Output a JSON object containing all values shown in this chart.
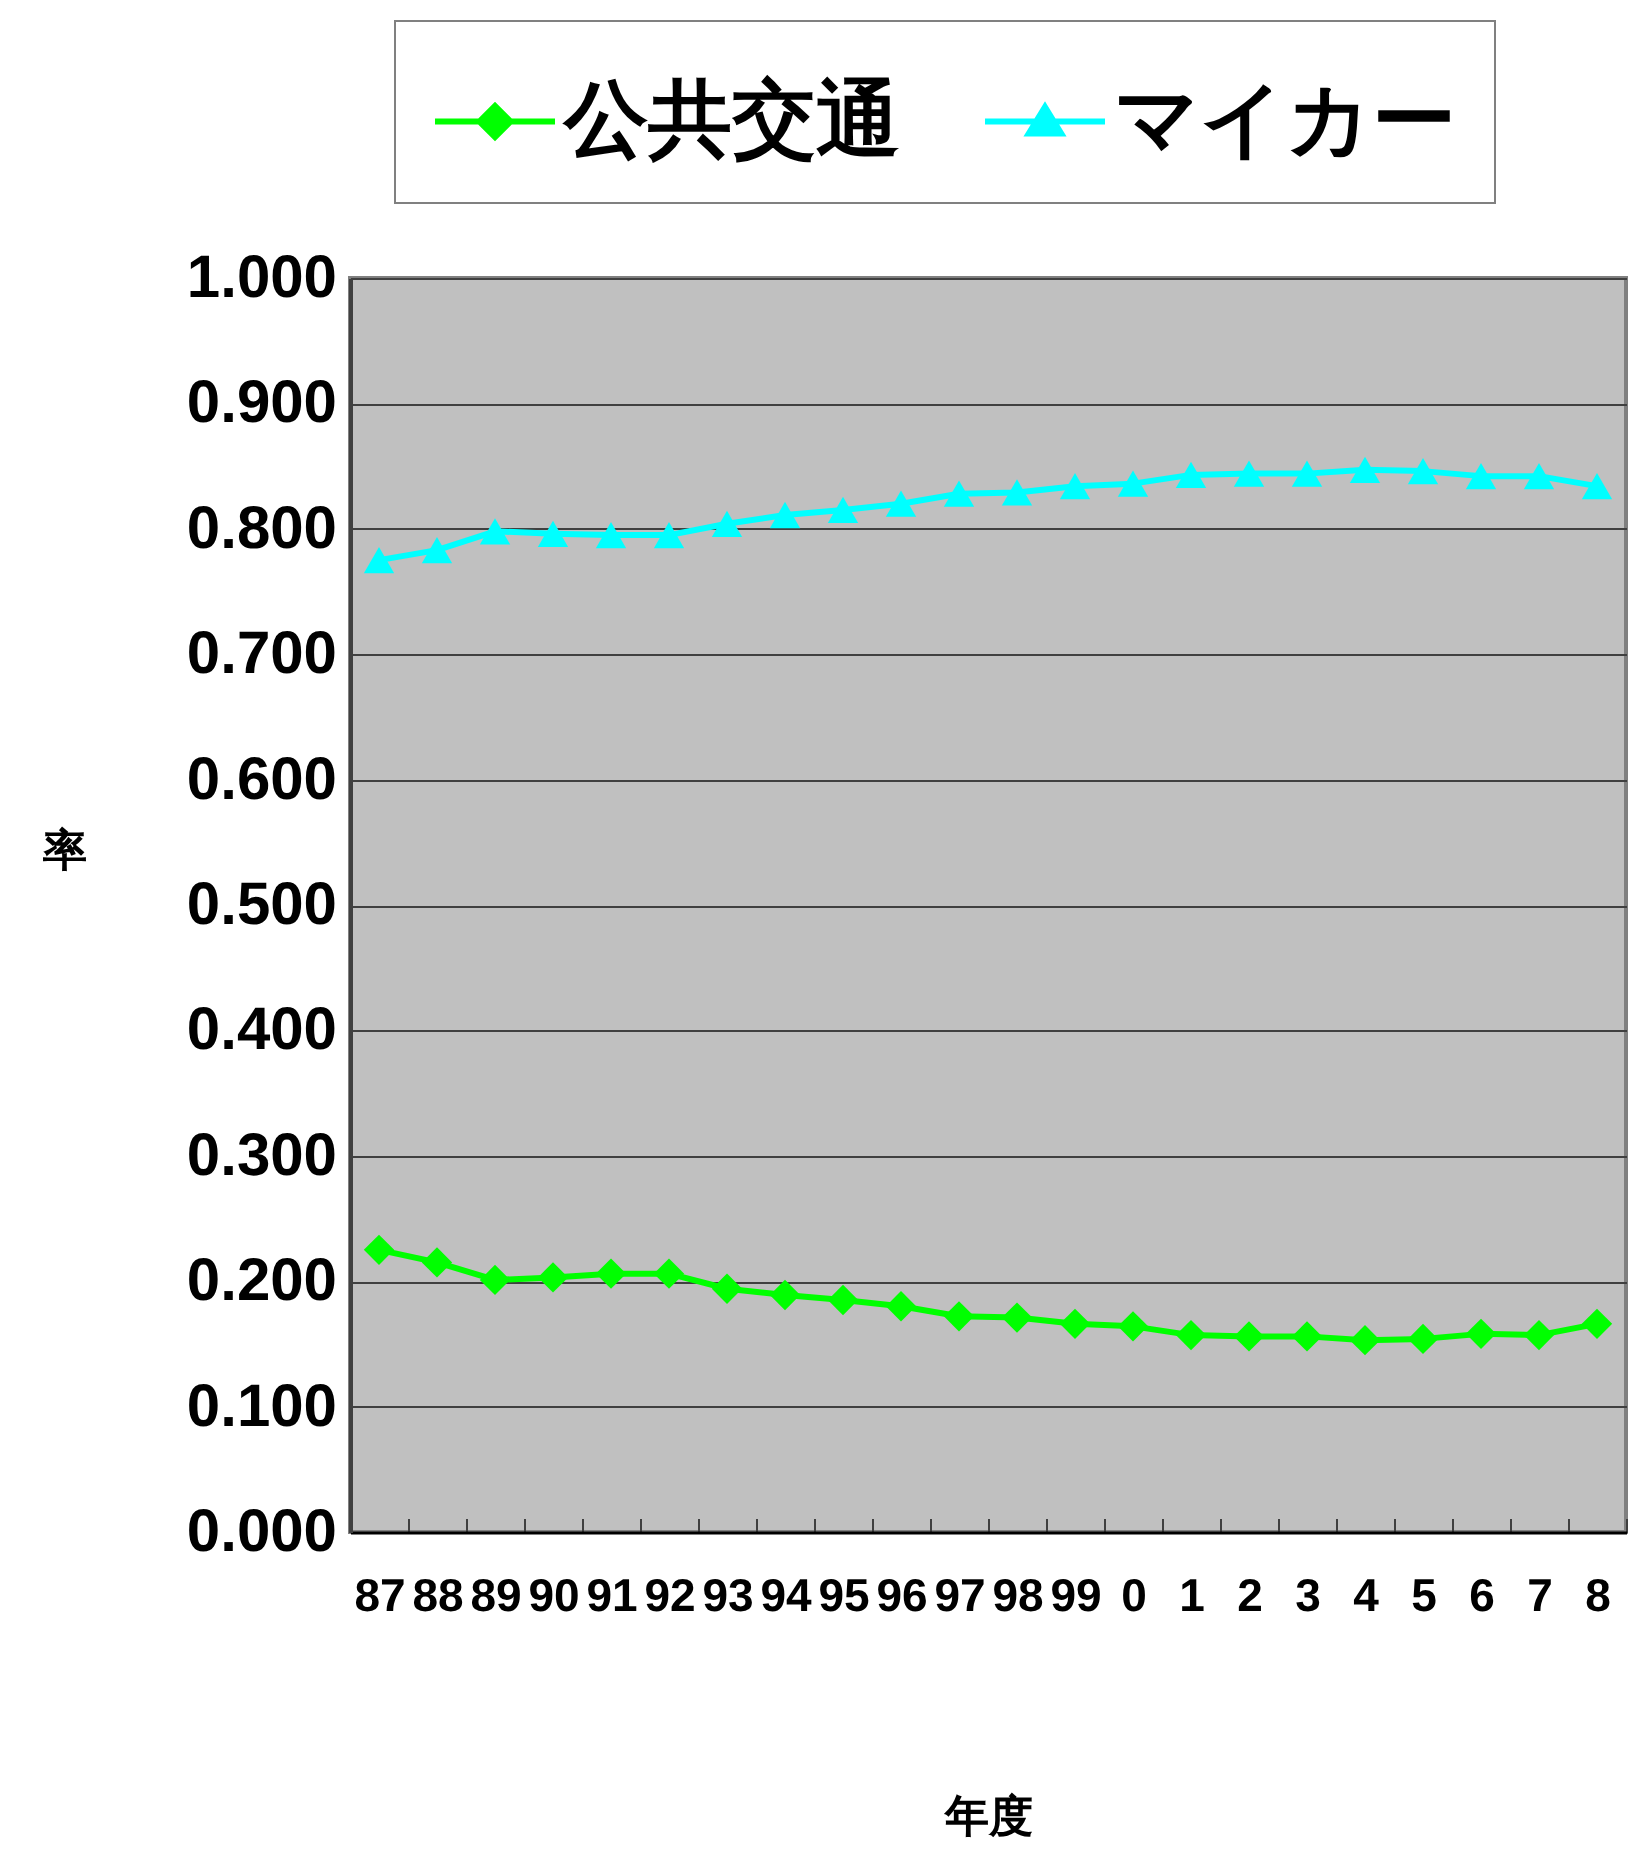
{
  "chart_data": {
    "type": "line",
    "xlabel": "年度",
    "ylabel": "率",
    "categories": [
      "87",
      "88",
      "89",
      "90",
      "91",
      "92",
      "93",
      "94",
      "95",
      "96",
      "97",
      "98",
      "99",
      "0",
      "1",
      "2",
      "3",
      "4",
      "5",
      "6",
      "7",
      "8"
    ],
    "series": [
      {
        "name": "公共交通",
        "color": "#00ff00",
        "marker": "diamond",
        "values": [
          0.225,
          0.215,
          0.201,
          0.203,
          0.206,
          0.206,
          0.194,
          0.189,
          0.185,
          0.18,
          0.172,
          0.171,
          0.166,
          0.164,
          0.157,
          0.156,
          0.156,
          0.153,
          0.154,
          0.158,
          0.157,
          0.166
        ]
      },
      {
        "name": "マイカー",
        "color": "#00ffff",
        "marker": "triangle",
        "values": [
          0.775,
          0.783,
          0.798,
          0.796,
          0.795,
          0.795,
          0.804,
          0.811,
          0.815,
          0.82,
          0.828,
          0.829,
          0.834,
          0.836,
          0.843,
          0.844,
          0.844,
          0.847,
          0.846,
          0.842,
          0.842,
          0.834
        ]
      }
    ],
    "ylim": [
      0,
      1
    ],
    "yticks": [
      {
        "value": 0,
        "label": "0.000"
      },
      {
        "value": 0.1,
        "label": "0.100"
      },
      {
        "value": 0.2,
        "label": "0.200"
      },
      {
        "value": 0.3,
        "label": "0.300"
      },
      {
        "value": 0.4,
        "label": "0.400"
      },
      {
        "value": 0.5,
        "label": "0.500"
      },
      {
        "value": 0.6,
        "label": "0.600"
      },
      {
        "value": 0.7,
        "label": "0.700"
      },
      {
        "value": 0.8,
        "label": "0.800"
      },
      {
        "value": 0.9,
        "label": "0.900"
      },
      {
        "value": 1,
        "label": "1.000"
      }
    ],
    "grid": "y",
    "legend": "top"
  }
}
